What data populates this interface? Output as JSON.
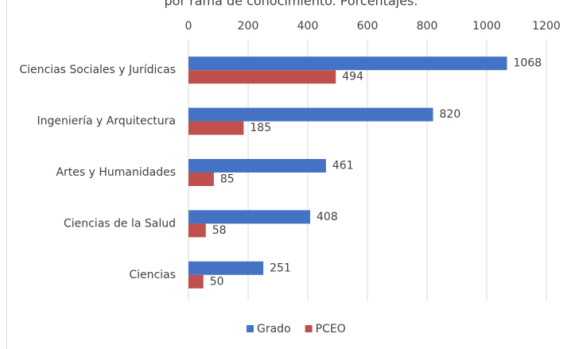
{
  "chart_data": {
    "type": "hbar",
    "title": "por rama de conocimiento. Porcentajes.",
    "categories": [
      "Ciencias Sociales y Jurídicas",
      "Ingeniería y Arquitectura",
      "Artes y Humanidades",
      "Ciencias de la Salud",
      "Ciencias"
    ],
    "series": [
      {
        "name": "Grado",
        "color": "#4472c4",
        "values": [
          1068,
          820,
          461,
          408,
          251
        ]
      },
      {
        "name": "PCEO",
        "color": "#c0504d",
        "values": [
          494,
          185,
          85,
          58,
          50
        ]
      }
    ],
    "xlim": [
      0,
      1200
    ],
    "xticks": [
      0,
      200,
      400,
      600,
      800,
      1000,
      1200
    ],
    "grid": true,
    "legend": "bottom"
  }
}
